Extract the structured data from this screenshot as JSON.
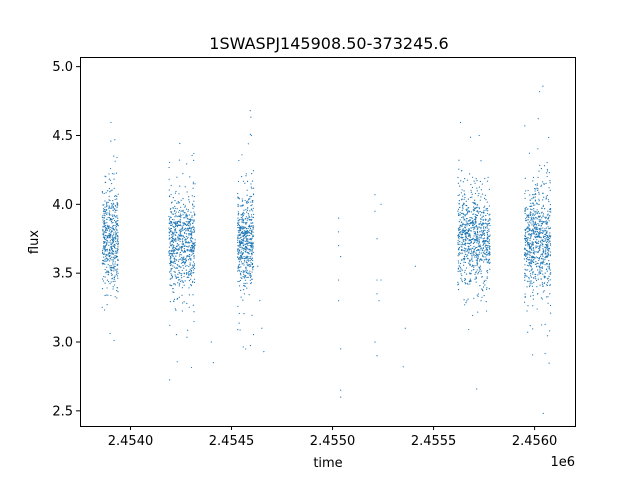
{
  "chart_data": {
    "type": "scatter",
    "title": "1SWASPJ145908.50-373245.6",
    "xlabel": "time",
    "ylabel": "flux",
    "x_offset_label": "1e6",
    "xlim": [
      2.45375,
      2.4562
    ],
    "ylim": [
      2.39,
      5.07
    ],
    "x_ticks": [
      2.454,
      2.4545,
      2.455,
      2.4555,
      2.456
    ],
    "x_tick_labels": [
      "2.4540",
      "2.4545",
      "2.4550",
      "2.4555",
      "2.4560"
    ],
    "y_ticks": [
      2.5,
      3.0,
      3.5,
      4.0,
      4.5,
      5.0
    ],
    "y_tick_labels": [
      "2.5",
      "3.0",
      "3.5",
      "4.0",
      "4.5",
      "5.0"
    ],
    "grid": false,
    "marker_color": "#1f77b4",
    "series": [
      {
        "clusters": [
          {
            "x_range": [
              2.45386,
              2.45394
            ],
            "y_center": 3.75,
            "y_spread": 0.17,
            "count": 500
          },
          {
            "x_range": [
              2.45419,
              2.45432
            ],
            "y_center": 3.72,
            "y_spread": 0.18,
            "count": 700
          },
          {
            "x_range": [
              2.45453,
              2.45461
            ],
            "y_center": 3.74,
            "y_spread": 0.17,
            "count": 550
          },
          {
            "x_range": [
              2.45562,
              2.45578
            ],
            "y_center": 3.75,
            "y_spread": 0.17,
            "count": 800
          },
          {
            "x_range": [
              2.45595,
              2.45608
            ],
            "y_center": 3.74,
            "y_spread": 0.18,
            "count": 750
          }
        ],
        "sparse_points": [
          [
            2.45463,
            3.55
          ],
          [
            2.45464,
            3.3
          ],
          [
            2.45465,
            3.1
          ],
          [
            2.45466,
            2.93
          ],
          [
            2.45503,
            3.9
          ],
          [
            2.45503,
            3.8
          ],
          [
            2.45503,
            3.7
          ],
          [
            2.45504,
            3.62
          ],
          [
            2.45503,
            3.45
          ],
          [
            2.45503,
            3.3
          ],
          [
            2.45504,
            2.95
          ],
          [
            2.45504,
            2.65
          ],
          [
            2.45504,
            2.6
          ],
          [
            2.45521,
            4.07
          ],
          [
            2.45521,
            3.95
          ],
          [
            2.45522,
            3.75
          ],
          [
            2.45522,
            3.45
          ],
          [
            2.45522,
            3.35
          ],
          [
            2.45521,
            3.0
          ],
          [
            2.45522,
            2.9
          ],
          [
            2.45524,
            3.45
          ],
          [
            2.45523,
            3.3
          ],
          [
            2.45524,
            4.0
          ],
          [
            2.45536,
            3.1
          ],
          [
            2.45535,
            2.82
          ],
          [
            2.4544,
            3.0
          ],
          [
            2.45441,
            2.85
          ],
          [
            2.45541,
            3.55
          ]
        ]
      }
    ]
  }
}
